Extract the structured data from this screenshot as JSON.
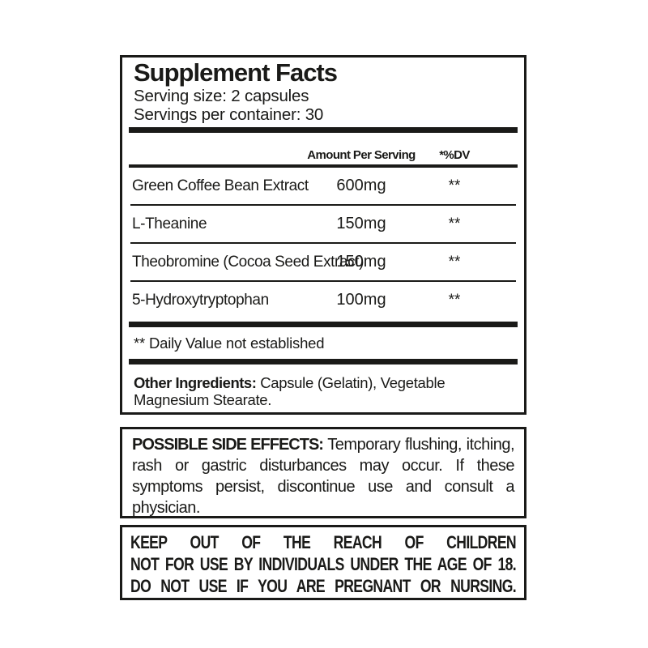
{
  "supplement_facts": {
    "title": "Supplement Facts",
    "serving_size": "Serving size: 2 capsules",
    "servings_per_container": "Servings per container: 30",
    "columns": {
      "amount": "Amount Per Serving",
      "dv": "*%DV"
    },
    "rows": [
      {
        "name": "Green Coffee Bean Extract",
        "amount": "600mg",
        "dv": "**"
      },
      {
        "name": "L-Theanine",
        "amount": "150mg",
        "dv": "**"
      },
      {
        "name": "Theobromine (Cocoa Seed Extract)",
        "amount": "150mg",
        "dv": "**"
      },
      {
        "name": "5-Hydroxytryptophan",
        "amount": "100mg",
        "dv": "**"
      }
    ],
    "footnote": "** Daily Value not established",
    "other_ingredients_label": "Other Ingredients:",
    "other_ingredients_text": " Capsule (Gelatin), Vegetable Magnesium Stearate."
  },
  "side_effects": {
    "label": "POSSIBLE SIDE EFFECTS:",
    "text": " Temporary flushing, itching, rash or gastric disturbances may occur. If these symptoms persist, discontinue use and consult a physician."
  },
  "warnings": {
    "lines": [
      "KEEP OUT OF THE REACH OF CHILDREN",
      "NOT FOR USE BY INDIVIDUALS UNDER THE AGE OF 18.",
      "DO NOT USE IF YOU ARE PREGNANT OR NURSING."
    ]
  },
  "colors": {
    "ink": "#1a1a18",
    "background": "#ffffff"
  }
}
